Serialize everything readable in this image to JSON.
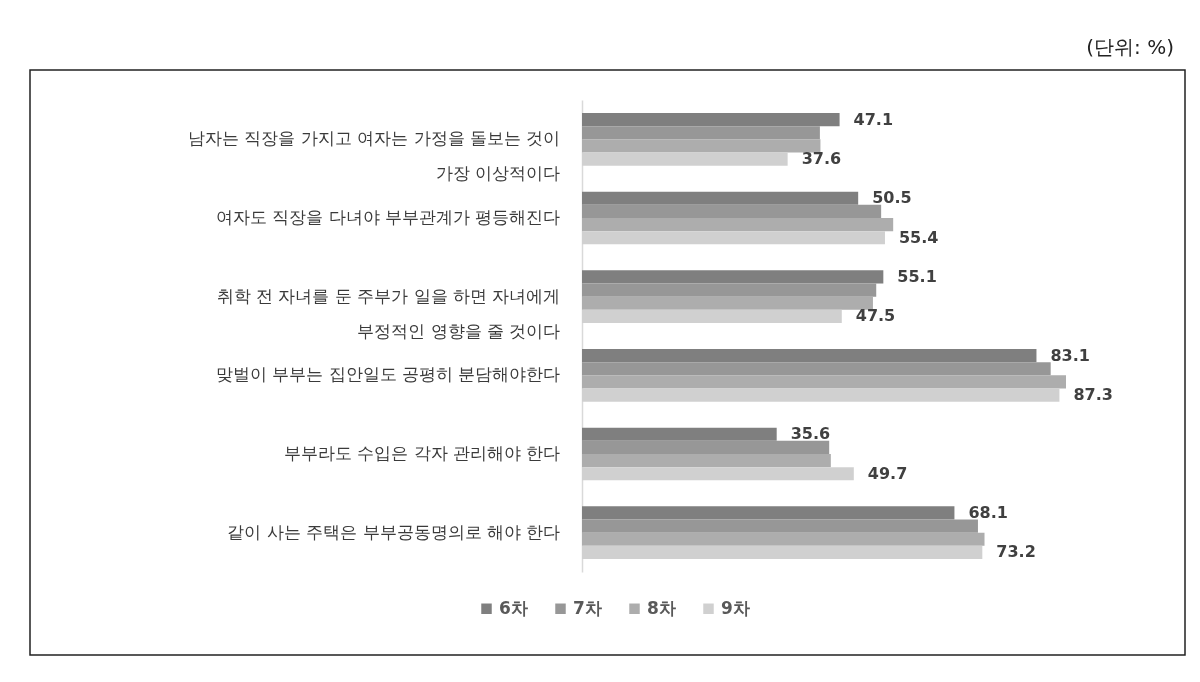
{
  "chart_data": {
    "type": "bar",
    "orientation": "horizontal",
    "categories": [
      "남자는 직장을 가지고 여자는 가정을 돌보는 것이 가장 이상적이다",
      "여자도 직장을 다녀야 부부관계가 평등해진다",
      "취학 전 자녀를 둔 주부가 일을 하면 자녀에게 부정적인 영향을 줄 것이다",
      "맞벌이 부부는 집안일도 공평히 분담해야한다",
      "부부라도 수입은 각자 관리해야 한다",
      "같이 사는 주택은 부부공동명의로 해야 한다"
    ],
    "series": [
      {
        "name": "6차",
        "color": "#7f7f7f",
        "values": [
          47.1,
          50.5,
          55.1,
          83.1,
          35.6,
          68.1
        ],
        "value_labels": [
          "47.1",
          "50.5",
          "55.1",
          "83.1",
          "35.6",
          "68.1"
        ]
      },
      {
        "name": "7차",
        "color": "#979797",
        "values": [
          43.5,
          54.7,
          53.8,
          85.7,
          45.2,
          72.4
        ]
      },
      {
        "name": "8차",
        "color": "#adadad",
        "values": [
          43.6,
          56.9,
          53.2,
          88.5,
          45.5,
          73.6
        ]
      },
      {
        "name": "9차",
        "color": "#d0d0d0",
        "values": [
          37.6,
          55.4,
          47.5,
          87.3,
          49.7,
          73.2
        ],
        "value_labels": [
          "37.6",
          "55.4",
          "47.5",
          "87.3",
          "49.7",
          "73.2"
        ]
      }
    ],
    "legend": "bottom",
    "annotations": [
      "(단위: %)"
    ]
  }
}
